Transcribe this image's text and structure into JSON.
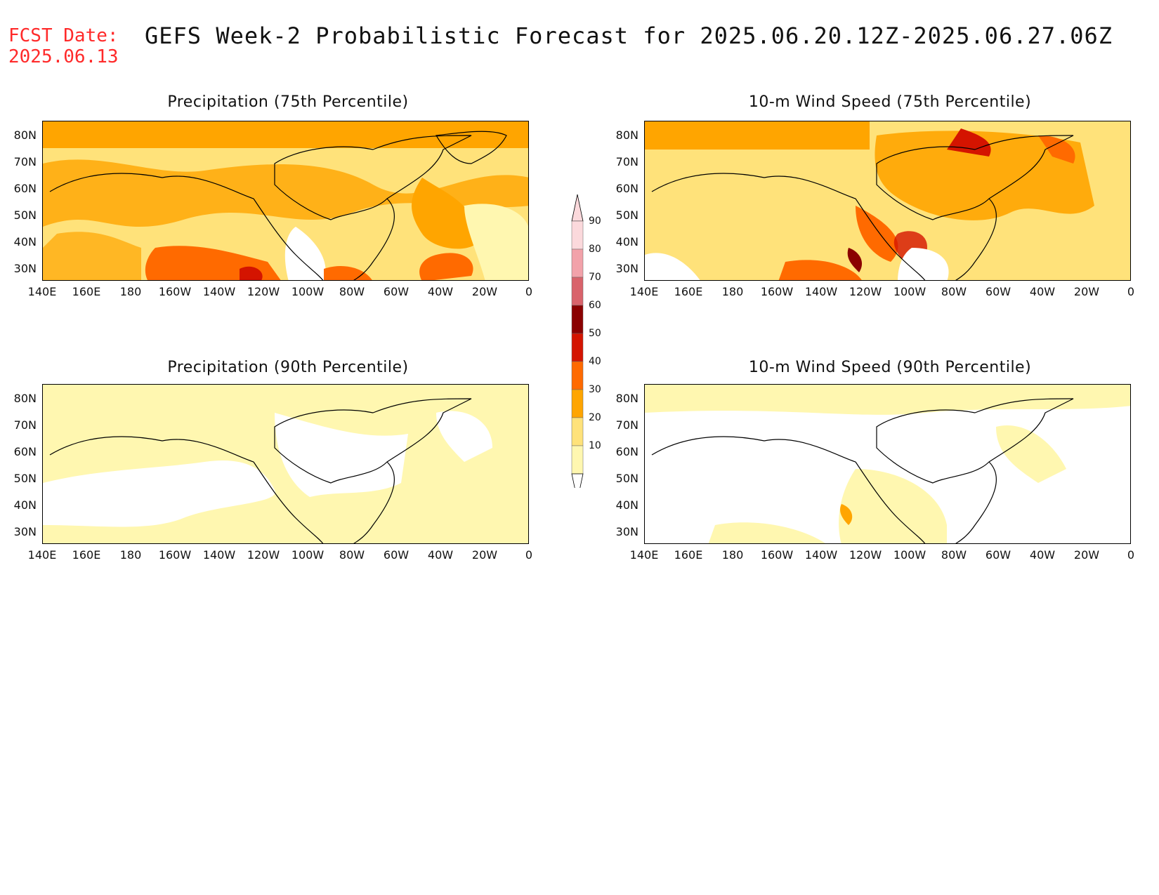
{
  "header": {
    "fcst_label": "FCST Date:",
    "fcst_date": "2025.06.13",
    "title": "GEFS Week-2 Probabilistic Forecast for 2025.06.20.12Z-2025.06.27.06Z"
  },
  "panels": [
    {
      "id": "precip75",
      "title": "Precipitation (75th Percentile)"
    },
    {
      "id": "wind75",
      "title": "10-m Wind Speed (75th Percentile)"
    },
    {
      "id": "precip90",
      "title": "Precipitation (90th Percentile)"
    },
    {
      "id": "wind90",
      "title": "10-m Wind Speed (90th Percentile)"
    }
  ],
  "axes": {
    "lat_labels": [
      "80N",
      "70N",
      "60N",
      "50N",
      "40N",
      "30N"
    ],
    "lon_labels": [
      "140E",
      "160E",
      "180",
      "160W",
      "140W",
      "120W",
      "100W",
      "80W",
      "60W",
      "40W",
      "20W",
      "0"
    ]
  },
  "colorbar": {
    "levels": [
      "90",
      "80",
      "70",
      "60",
      "50",
      "40",
      "30",
      "20",
      "10"
    ],
    "colors": [
      "#fbd9dc",
      "#f2a2aa",
      "#d9636b",
      "#8b0000",
      "#d41400",
      "#ff6a00",
      "#ffa500",
      "#ffe27a",
      "#fff7b0"
    ]
  }
}
